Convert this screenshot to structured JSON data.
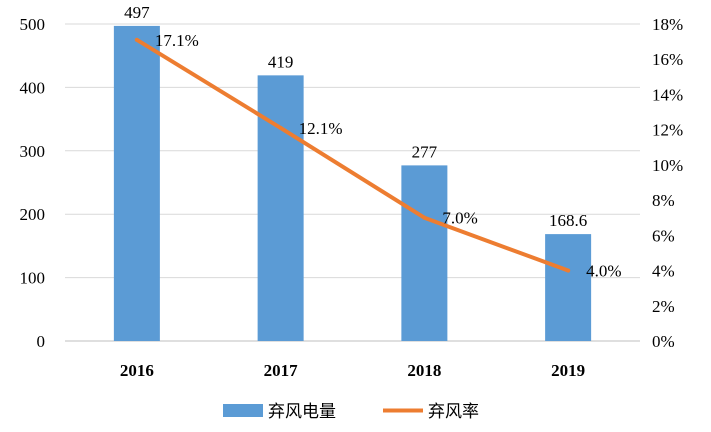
{
  "colors": {
    "bar": "#5b9bd5",
    "line": "#ed7d31",
    "grid": "#d9d9d9",
    "axis": "#bfbfbf"
  },
  "chart_data": {
    "type": "bar",
    "categories": [
      "2016",
      "2017",
      "2018",
      "2019"
    ],
    "series": [
      {
        "name": "弃风电量",
        "type": "bar",
        "axis": "left",
        "values": [
          497,
          419,
          277,
          168.6
        ],
        "labels": [
          "497",
          "419",
          "277",
          "168.6"
        ]
      },
      {
        "name": "弃风率",
        "type": "line",
        "axis": "right",
        "values": [
          17.1,
          12.1,
          7.0,
          4.0
        ],
        "labels": [
          "17.1%",
          "12.1%",
          "7.0%",
          "4.0%"
        ]
      }
    ],
    "left_axis": {
      "ylim": [
        0,
        500
      ],
      "ticks": [
        "0",
        "100",
        "200",
        "300",
        "400",
        "500"
      ]
    },
    "right_axis": {
      "ylim": [
        0,
        18
      ],
      "ticks": [
        "0%",
        "2%",
        "4%",
        "6%",
        "8%",
        "10%",
        "12%",
        "14%",
        "16%",
        "18%"
      ]
    },
    "grid": true,
    "legend_position": "bottom"
  }
}
